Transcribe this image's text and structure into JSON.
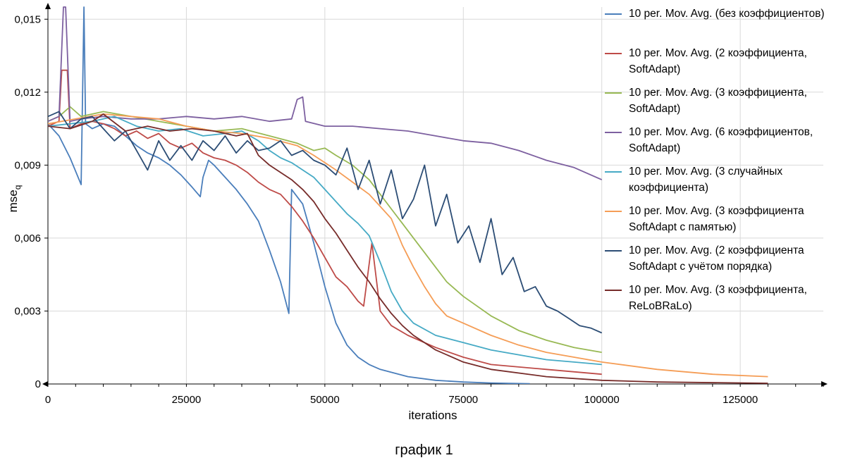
{
  "caption": "график 1",
  "chart_data": {
    "type": "line",
    "title": "",
    "xlabel": "iterations",
    "ylabel": "mse",
    "ylabel_subscript": "q",
    "xlim": [
      0,
      140000
    ],
    "ylim": [
      0,
      0.0155
    ],
    "x_ticks": [
      0,
      25000,
      50000,
      75000,
      100000,
      125000
    ],
    "x_tick_labels": [
      "0",
      "25000",
      "50000",
      "75000",
      "100000",
      "125000"
    ],
    "y_ticks": [
      0,
      0.003,
      0.006,
      0.009,
      0.012,
      0.015
    ],
    "y_tick_labels": [
      "0",
      "0,003",
      "0,006",
      "0,009",
      "0,012",
      "0,015"
    ],
    "grid": true,
    "legend_position": "right",
    "series": [
      {
        "name": "10 per. Mov. Avg. (без коэффициентов)",
        "color": "#4a7ebb",
        "points": [
          [
            0,
            0.0107
          ],
          [
            2000,
            0.0102
          ],
          [
            4000,
            0.0093
          ],
          [
            6000,
            0.0082
          ],
          [
            6500,
            0.0155
          ],
          [
            6800,
            0.0107
          ],
          [
            8000,
            0.0105
          ],
          [
            10000,
            0.0107
          ],
          [
            12000,
            0.0106
          ],
          [
            14000,
            0.0102
          ],
          [
            16000,
            0.0098
          ],
          [
            18000,
            0.0095
          ],
          [
            20000,
            0.0093
          ],
          [
            22000,
            0.009
          ],
          [
            24000,
            0.0086
          ],
          [
            26000,
            0.0081
          ],
          [
            27500,
            0.0077
          ],
          [
            28000,
            0.0085
          ],
          [
            29000,
            0.0092
          ],
          [
            30000,
            0.009
          ],
          [
            32000,
            0.0085
          ],
          [
            34000,
            0.008
          ],
          [
            36000,
            0.0074
          ],
          [
            38000,
            0.0067
          ],
          [
            40000,
            0.0055
          ],
          [
            42000,
            0.0042
          ],
          [
            43500,
            0.0029
          ],
          [
            44000,
            0.008
          ],
          [
            46000,
            0.0074
          ],
          [
            48000,
            0.0058
          ],
          [
            50000,
            0.004
          ],
          [
            52000,
            0.0025
          ],
          [
            54000,
            0.0016
          ],
          [
            56000,
            0.0011
          ],
          [
            58000,
            0.0008
          ],
          [
            60000,
            0.0006
          ],
          [
            65000,
            0.0003
          ],
          [
            70000,
            0.00015
          ],
          [
            75000,
            8e-05
          ],
          [
            80000,
            4e-05
          ],
          [
            87000,
            1e-05
          ]
        ]
      },
      {
        "name": "10 per. Mov. Avg. (2 коэффициента, SoftAdapt)",
        "color": "#be4b48",
        "points": [
          [
            0,
            0.0106
          ],
          [
            2000,
            0.0108
          ],
          [
            2500,
            0.0129
          ],
          [
            3500,
            0.0129
          ],
          [
            4000,
            0.0105
          ],
          [
            6000,
            0.0107
          ],
          [
            8000,
            0.0108
          ],
          [
            10000,
            0.0107
          ],
          [
            12000,
            0.0105
          ],
          [
            14000,
            0.0102
          ],
          [
            16000,
            0.0104
          ],
          [
            18000,
            0.0101
          ],
          [
            20000,
            0.0103
          ],
          [
            22000,
            0.0099
          ],
          [
            24000,
            0.0097
          ],
          [
            26000,
            0.0099
          ],
          [
            28000,
            0.0095
          ],
          [
            30000,
            0.0093
          ],
          [
            32000,
            0.0092
          ],
          [
            34000,
            0.009
          ],
          [
            36000,
            0.0087
          ],
          [
            38000,
            0.0083
          ],
          [
            40000,
            0.008
          ],
          [
            42000,
            0.0078
          ],
          [
            44000,
            0.0073
          ],
          [
            46000,
            0.0067
          ],
          [
            48000,
            0.006
          ],
          [
            50000,
            0.0052
          ],
          [
            52000,
            0.0044
          ],
          [
            54000,
            0.004
          ],
          [
            56000,
            0.0034
          ],
          [
            57000,
            0.0032
          ],
          [
            58500,
            0.0058
          ],
          [
            60000,
            0.003
          ],
          [
            62000,
            0.0024
          ],
          [
            65000,
            0.002
          ],
          [
            70000,
            0.0015
          ],
          [
            75000,
            0.0011
          ],
          [
            80000,
            0.0008
          ],
          [
            90000,
            0.0006
          ],
          [
            100000,
            0.0004
          ]
        ]
      },
      {
        "name": "10 per. Mov. Avg. (3 коэффициента, SoftAdapt)",
        "color": "#98b954",
        "points": [
          [
            0,
            0.0108
          ],
          [
            2000,
            0.011
          ],
          [
            4000,
            0.0114
          ],
          [
            6000,
            0.011
          ],
          [
            10000,
            0.0112
          ],
          [
            15000,
            0.011
          ],
          [
            20000,
            0.0108
          ],
          [
            25000,
            0.0106
          ],
          [
            30000,
            0.0104
          ],
          [
            35000,
            0.0105
          ],
          [
            40000,
            0.0102
          ],
          [
            45000,
            0.0099
          ],
          [
            48000,
            0.0096
          ],
          [
            50000,
            0.0097
          ],
          [
            52000,
            0.0094
          ],
          [
            55000,
            0.009
          ],
          [
            58000,
            0.0084
          ],
          [
            60000,
            0.0078
          ],
          [
            62000,
            0.0072
          ],
          [
            64000,
            0.0066
          ],
          [
            66000,
            0.006
          ],
          [
            68000,
            0.0054
          ],
          [
            70000,
            0.0048
          ],
          [
            72000,
            0.0042
          ],
          [
            75000,
            0.0036
          ],
          [
            80000,
            0.0028
          ],
          [
            85000,
            0.0022
          ],
          [
            90000,
            0.0018
          ],
          [
            95000,
            0.0015
          ],
          [
            100000,
            0.0013
          ]
        ]
      },
      {
        "name": "10 per. Mov. Avg. (6 коэффициентов, SoftAdapt)",
        "color": "#7d60a0",
        "points": [
          [
            0,
            0.0108
          ],
          [
            2000,
            0.011
          ],
          [
            2800,
            0.0155
          ],
          [
            3200,
            0.0155
          ],
          [
            4000,
            0.0108
          ],
          [
            6000,
            0.0109
          ],
          [
            10000,
            0.011
          ],
          [
            15000,
            0.0109
          ],
          [
            20000,
            0.0109
          ],
          [
            25000,
            0.011
          ],
          [
            30000,
            0.0109
          ],
          [
            35000,
            0.011
          ],
          [
            40000,
            0.0108
          ],
          [
            44000,
            0.0109
          ],
          [
            45000,
            0.0117
          ],
          [
            46000,
            0.0118
          ],
          [
            46500,
            0.0108
          ],
          [
            50000,
            0.0106
          ],
          [
            55000,
            0.0106
          ],
          [
            60000,
            0.0105
          ],
          [
            65000,
            0.0104
          ],
          [
            70000,
            0.0102
          ],
          [
            75000,
            0.01
          ],
          [
            80000,
            0.0099
          ],
          [
            85000,
            0.0096
          ],
          [
            90000,
            0.0092
          ],
          [
            95000,
            0.0089
          ],
          [
            100000,
            0.0084
          ]
        ]
      },
      {
        "name": "10 per. Mov. Avg. (3 случайных коэффициента)",
        "color": "#46aac5",
        "points": [
          [
            0,
            0.0106
          ],
          [
            4000,
            0.0107
          ],
          [
            8000,
            0.0108
          ],
          [
            12000,
            0.011
          ],
          [
            16000,
            0.0106
          ],
          [
            20000,
            0.0104
          ],
          [
            24000,
            0.0105
          ],
          [
            28000,
            0.0102
          ],
          [
            32000,
            0.0103
          ],
          [
            35000,
            0.0104
          ],
          [
            38000,
            0.01
          ],
          [
            40000,
            0.0096
          ],
          [
            42000,
            0.0093
          ],
          [
            44000,
            0.0091
          ],
          [
            46000,
            0.0088
          ],
          [
            48000,
            0.0085
          ],
          [
            50000,
            0.008
          ],
          [
            52000,
            0.0075
          ],
          [
            54000,
            0.007
          ],
          [
            56000,
            0.0066
          ],
          [
            58000,
            0.0061
          ],
          [
            60000,
            0.005
          ],
          [
            62000,
            0.0038
          ],
          [
            64000,
            0.003
          ],
          [
            66000,
            0.0025
          ],
          [
            70000,
            0.002
          ],
          [
            75000,
            0.0017
          ],
          [
            80000,
            0.0014
          ],
          [
            85000,
            0.0012
          ],
          [
            90000,
            0.001
          ],
          [
            95000,
            0.0009
          ],
          [
            100000,
            0.0008
          ]
        ]
      },
      {
        "name": "10 per. Mov. Avg. (3 коэффициента SoftAdapt с памятью)",
        "color": "#f59d56",
        "points": [
          [
            0,
            0.0107
          ],
          [
            5000,
            0.0109
          ],
          [
            10000,
            0.0111
          ],
          [
            15000,
            0.011
          ],
          [
            20000,
            0.0109
          ],
          [
            25000,
            0.0106
          ],
          [
            30000,
            0.0104
          ],
          [
            35000,
            0.0103
          ],
          [
            40000,
            0.0101
          ],
          [
            45000,
            0.0098
          ],
          [
            48000,
            0.0094
          ],
          [
            50000,
            0.0091
          ],
          [
            52000,
            0.0088
          ],
          [
            55000,
            0.0083
          ],
          [
            58000,
            0.0078
          ],
          [
            60000,
            0.0073
          ],
          [
            62000,
            0.0068
          ],
          [
            64000,
            0.0057
          ],
          [
            66000,
            0.0048
          ],
          [
            68000,
            0.004
          ],
          [
            70000,
            0.0033
          ],
          [
            72000,
            0.0028
          ],
          [
            75000,
            0.0025
          ],
          [
            80000,
            0.002
          ],
          [
            85000,
            0.0016
          ],
          [
            90000,
            0.0013
          ],
          [
            95000,
            0.0011
          ],
          [
            100000,
            0.0009
          ],
          [
            110000,
            0.0006
          ],
          [
            120000,
            0.0004
          ],
          [
            130000,
            0.0003
          ]
        ]
      },
      {
        "name": "10 per. Mov. Avg. (2 коэффициента SoftAdapt с учётом порядка)",
        "color": "#2c4d75",
        "points": [
          [
            0,
            0.011
          ],
          [
            2000,
            0.0112
          ],
          [
            4000,
            0.0105
          ],
          [
            6000,
            0.0109
          ],
          [
            8000,
            0.011
          ],
          [
            10000,
            0.0105
          ],
          [
            12000,
            0.01
          ],
          [
            14000,
            0.0104
          ],
          [
            16000,
            0.0096
          ],
          [
            18000,
            0.0088
          ],
          [
            20000,
            0.01
          ],
          [
            22000,
            0.0092
          ],
          [
            24000,
            0.0098
          ],
          [
            26000,
            0.0092
          ],
          [
            28000,
            0.01
          ],
          [
            30000,
            0.0096
          ],
          [
            32000,
            0.0102
          ],
          [
            34000,
            0.0095
          ],
          [
            36000,
            0.01
          ],
          [
            38000,
            0.0096
          ],
          [
            40000,
            0.0097
          ],
          [
            42000,
            0.01
          ],
          [
            44000,
            0.0094
          ],
          [
            46000,
            0.0096
          ],
          [
            48000,
            0.0092
          ],
          [
            50000,
            0.009
          ],
          [
            52000,
            0.0086
          ],
          [
            54000,
            0.0097
          ],
          [
            56000,
            0.008
          ],
          [
            58000,
            0.0092
          ],
          [
            60000,
            0.0074
          ],
          [
            62000,
            0.0088
          ],
          [
            64000,
            0.0068
          ],
          [
            66000,
            0.0076
          ],
          [
            68000,
            0.009
          ],
          [
            70000,
            0.0065
          ],
          [
            72000,
            0.0078
          ],
          [
            74000,
            0.0058
          ],
          [
            76000,
            0.0065
          ],
          [
            78000,
            0.005
          ],
          [
            80000,
            0.0068
          ],
          [
            82000,
            0.0045
          ],
          [
            84000,
            0.0052
          ],
          [
            86000,
            0.0038
          ],
          [
            88000,
            0.004
          ],
          [
            90000,
            0.0032
          ],
          [
            92000,
            0.003
          ],
          [
            94000,
            0.0027
          ],
          [
            96000,
            0.0024
          ],
          [
            98000,
            0.0023
          ],
          [
            100000,
            0.0021
          ]
        ]
      },
      {
        "name": "10 per. Mov. Avg. (3 коэффициента, ReLoBRaLo)",
        "color": "#772c2a",
        "points": [
          [
            0,
            0.0106
          ],
          [
            4000,
            0.0105
          ],
          [
            8000,
            0.0108
          ],
          [
            10000,
            0.0111
          ],
          [
            14000,
            0.0104
          ],
          [
            18000,
            0.0106
          ],
          [
            22000,
            0.0104
          ],
          [
            26000,
            0.0105
          ],
          [
            30000,
            0.0104
          ],
          [
            34000,
            0.0102
          ],
          [
            36000,
            0.0103
          ],
          [
            38000,
            0.0094
          ],
          [
            40000,
            0.009
          ],
          [
            42000,
            0.0087
          ],
          [
            44000,
            0.0084
          ],
          [
            46000,
            0.008
          ],
          [
            48000,
            0.0075
          ],
          [
            50000,
            0.0068
          ],
          [
            52000,
            0.0062
          ],
          [
            54000,
            0.0055
          ],
          [
            56000,
            0.0048
          ],
          [
            58000,
            0.0042
          ],
          [
            60000,
            0.0035
          ],
          [
            62000,
            0.0029
          ],
          [
            64000,
            0.0024
          ],
          [
            66000,
            0.002
          ],
          [
            70000,
            0.0014
          ],
          [
            75000,
            0.0009
          ],
          [
            80000,
            0.0006
          ],
          [
            90000,
            0.0003
          ],
          [
            100000,
            0.00015
          ],
          [
            110000,
            8e-05
          ],
          [
            130000,
            3e-05
          ]
        ]
      }
    ]
  }
}
